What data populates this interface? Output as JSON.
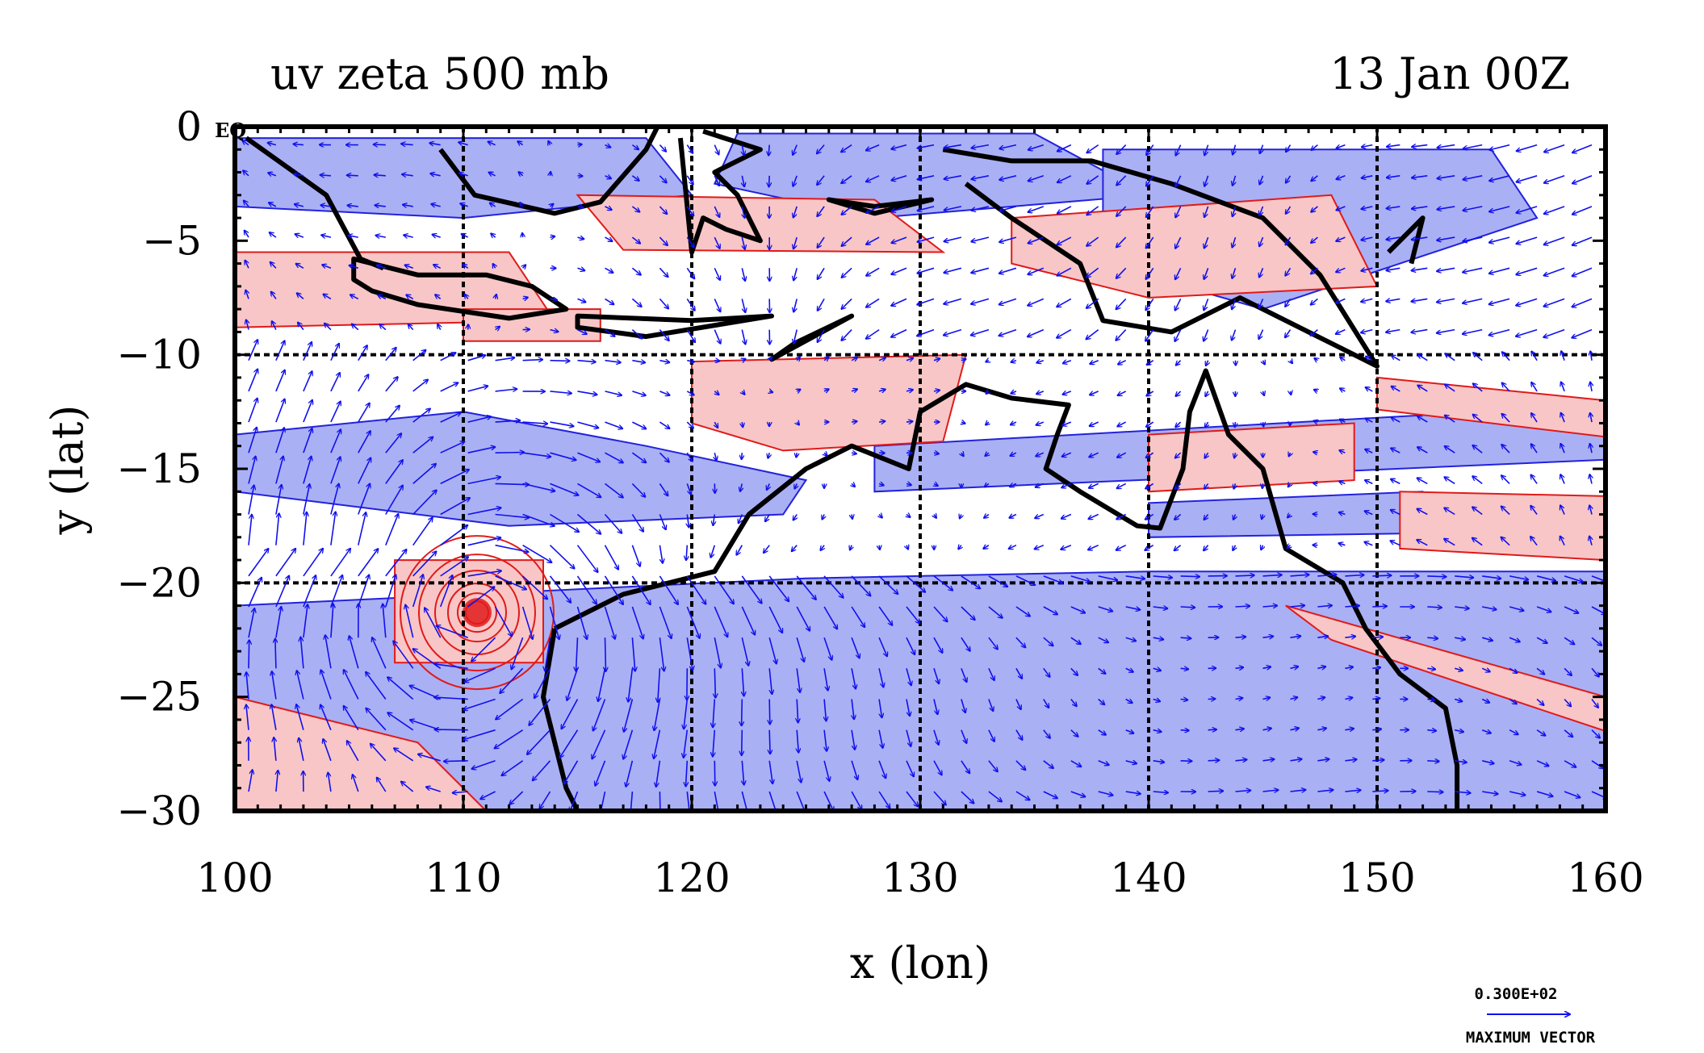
{
  "chart_data": {
    "type": "vector-field",
    "title": "uv zeta 500 mb",
    "date": "13 Jan 00Z",
    "xlabel": "x (lon)",
    "ylabel": "y (lat)",
    "xlim": [
      100,
      160
    ],
    "ylim": [
      -30,
      0
    ],
    "x_ticks": [
      "100",
      "110",
      "120",
      "130",
      "140",
      "150",
      "160"
    ],
    "y_ticks": [
      "0",
      "−5",
      "−10",
      "−15",
      "−20",
      "−25",
      "−30"
    ],
    "equator_label": "EQ",
    "grid_lines_lon": [
      110,
      120,
      130,
      140,
      150
    ],
    "grid_lines_lat": [
      -10,
      -20
    ],
    "max_vector_value": "0.300E+02",
    "max_vector_label": "MAXIMUM VECTOR",
    "cyclone_center": [
      110.6,
      -21.3
    ],
    "colors": {
      "vector": "#1010ee",
      "positive_fill": "#f8c6c6",
      "positive_contour": "#e01a1a",
      "negative_fill": "#aab0f4",
      "negative_contour": "#2222dd",
      "coast": "#000000"
    }
  }
}
